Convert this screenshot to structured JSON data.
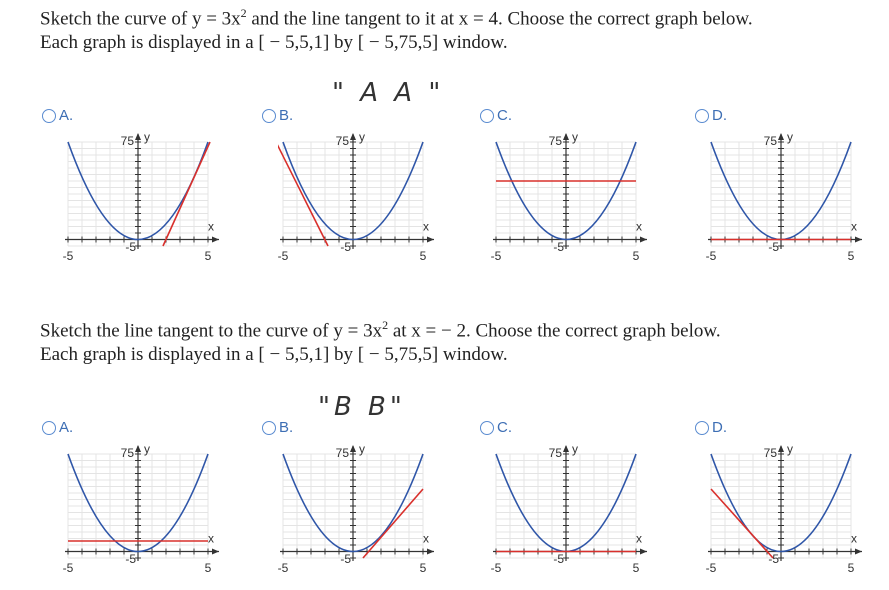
{
  "questions": [
    {
      "prompt": {
        "text": "Sketch the curve of y = 3x",
        "superscript": "2",
        "text_after": " and the line tangent to it at x = 4. Choose the correct graph below.",
        "window_line": "Each graph is displayed in a [ − 5,5,1] by [ − 5,75,5] window."
      },
      "annotation": "\" A A \"",
      "options": [
        "A.",
        "B.",
        "C.",
        "D."
      ]
    },
    {
      "prompt": {
        "text": "Sketch the line tangent to the curve of y = 3x",
        "superscript": "2",
        "text_after": " at x = − 2. Choose the correct graph below.",
        "window_line": "Each graph is displayed in a [ − 5,5,1] by [ − 5,75,5] window."
      },
      "annotation": "\"B B\"",
      "options": [
        "A.",
        "B.",
        "C.",
        "D."
      ]
    }
  ],
  "graph_labels": {
    "y_top": "75",
    "y_name": "y",
    "x_name": "x",
    "x_min": "-5",
    "x_max": "5",
    "y_min": "-5"
  }
}
